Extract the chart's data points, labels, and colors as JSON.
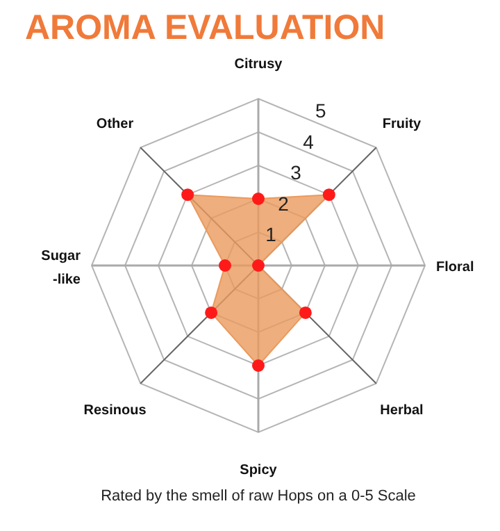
{
  "chart_data": {
    "type": "radar",
    "title": "AROMA EVALUATION",
    "categories": [
      "Citrusy",
      "Fruity",
      "Floral",
      "Herbal",
      "Spicy",
      "Resinous",
      "Sugar-like",
      "Other"
    ],
    "series": [
      {
        "color": "#eb9a5c",
        "values": [
          2,
          3,
          0,
          2,
          3,
          2,
          1,
          3
        ]
      }
    ],
    "ylim": [
      0,
      5
    ],
    "yticks": [
      1,
      2,
      3,
      4,
      5
    ],
    "marker": "circle",
    "annotations": [
      "Rated by the smell of raw Hops on a 0-5 Scale"
    ]
  }
}
